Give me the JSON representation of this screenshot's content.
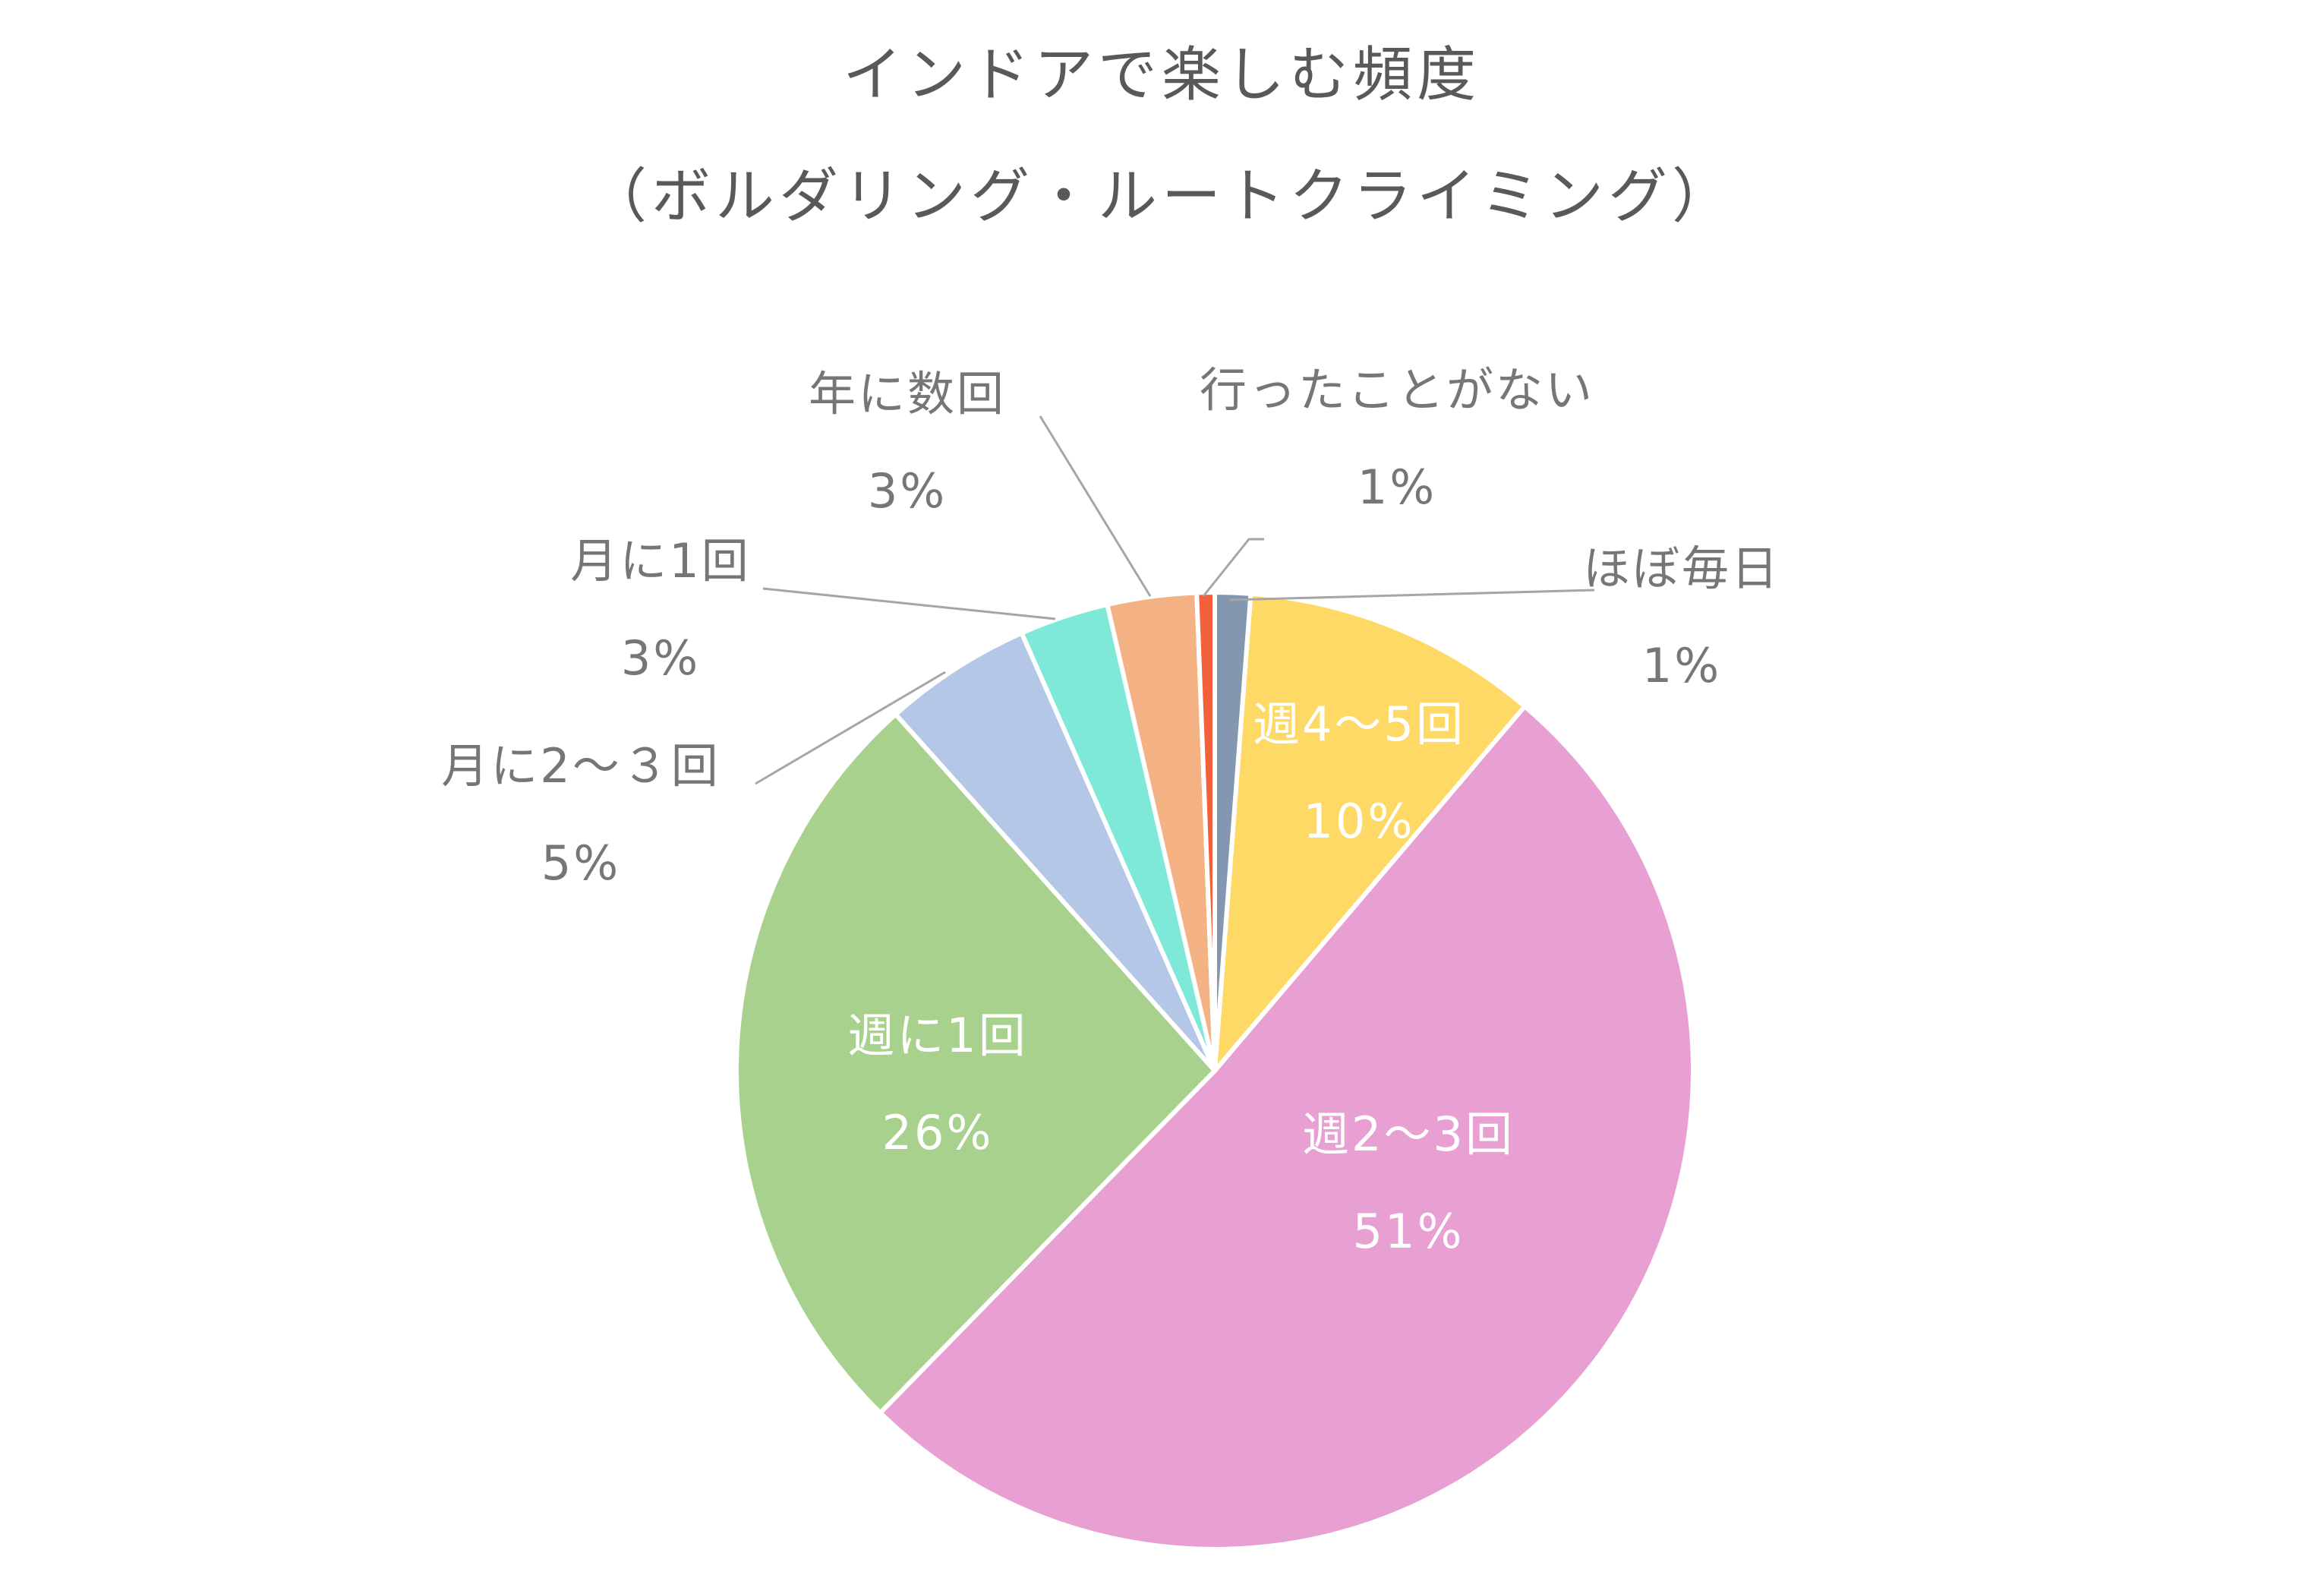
{
  "chart_data": {
    "type": "pie",
    "title": "インドアで楽しむ頻度",
    "subtitle": "（ボルダリング・ルートクライミング）",
    "slices": [
      {
        "label": "ほぼ毎日",
        "percent_label": "1%",
        "value": 1.2,
        "color": "#8497b0"
      },
      {
        "label": "週4～5回",
        "percent_label": "10%",
        "value": 10,
        "color": "#ffd966"
      },
      {
        "label": "週2～3回",
        "percent_label": "51%",
        "value": 51,
        "color": "#e8a0d2"
      },
      {
        "label": "週に1回",
        "percent_label": "26%",
        "value": 26,
        "color": "#a9d18e"
      },
      {
        "label": "月に2～３回",
        "percent_label": "5%",
        "value": 5,
        "color": "#b4c7e7"
      },
      {
        "label": "月に1回",
        "percent_label": "3%",
        "value": 3,
        "color": "#7ee9d9"
      },
      {
        "label": "年に数回",
        "percent_label": "3%",
        "value": 3,
        "color": "#f4b183"
      },
      {
        "label": "行ったことがない",
        "percent_label": "1%",
        "value": 0.6,
        "color": "#f4603c"
      }
    ]
  }
}
